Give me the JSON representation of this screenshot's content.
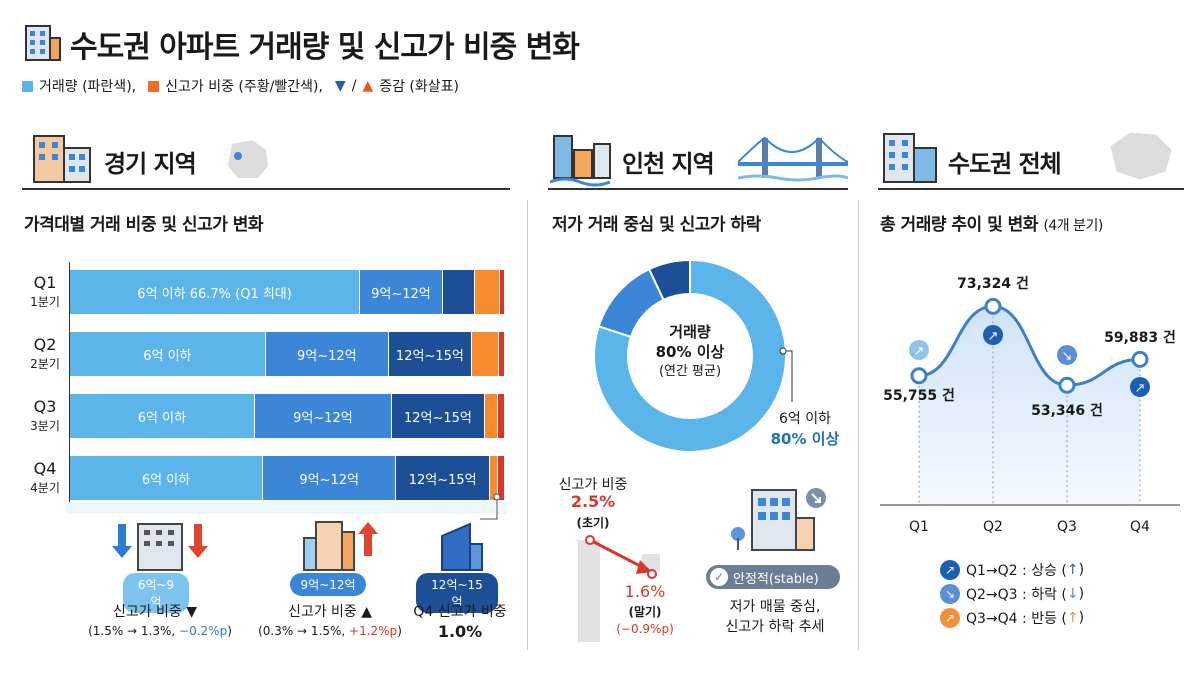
{
  "title": "수도권 아파트 거래량 및 신고가 비중 변화",
  "legend": {
    "volume": "거래량 (파란색),",
    "high_ratio": "신고가 비중 (주황/빨간색),",
    "change_sep": "/",
    "change": "증감 (화살표)"
  },
  "colors": {
    "light": "#5bb4ea",
    "mid": "#3b86d6",
    "dark": "#1d4f96",
    "orange": "#f68a2e",
    "red": "#d9362b",
    "line": "#3d7fc9"
  },
  "gyeonggi": {
    "heading": "경기 지역",
    "subtitle": "가격대별 거래 비중 및 신고가 변화",
    "bottom": [
      {
        "pill": "6억~9억",
        "label": "신고가 비중 ▼",
        "detail": "(1.5% → 1.3%, ",
        "delta": "−0.2%p",
        ")": ")"
      },
      {
        "pill": "9억~12억",
        "label": "신고가 비중 ▲",
        "detail": "(0.3% → 1.5%, ",
        "delta": "+1.2%p",
        ")": ")"
      },
      {
        "pill": "12억~15억",
        "label": "Q4 신고가 비중",
        "value": "1.0%"
      }
    ]
  },
  "incheon": {
    "heading": "인천 지역",
    "subtitle": "저가 거래 중심 및 신고가 하락",
    "donut_center": [
      "거래량",
      "80% 이상",
      "(연간 평균)"
    ],
    "donut_label": "6억 이하",
    "donut_value": "80% 이상",
    "high_title": "신고가 비중",
    "start_value": "2.5%",
    "start_label": "(초기)",
    "end_value": "1.6%",
    "end_label": "(말기)",
    "delta": "(−0.9%p)",
    "badge": "안정적(stable)",
    "note": [
      "저가 매물 중심,",
      "신고가 하락 추세"
    ]
  },
  "capital": {
    "heading": "수도권 전체",
    "subtitle": "총 거래량 추이 및 변화",
    "subtitle_note": "(4개 분기)",
    "legend": [
      {
        "text": "Q1→Q2 : 상승 (",
        "arrow": "↑",
        "color": "#1d5fb0"
      },
      {
        "text": "Q2→Q3 : 하락 (",
        "arrow": "↓",
        "color": "#5a8fd8"
      },
      {
        "text": "Q3→Q4 : 반등 (",
        "arrow": "↑",
        "color": "#f0913a"
      }
    ]
  },
  "chart_data": [
    {
      "type": "bar",
      "stacked": true,
      "orientation": "horizontal",
      "title": "가격대별 거래 비중 및 신고가 변화",
      "categories": [
        "Q1",
        "Q2",
        "Q3",
        "Q4"
      ],
      "category_sublabels": [
        "1분기",
        "2분기",
        "3분기",
        "4분기"
      ],
      "segment_labels": [
        [
          "6억 이하 66.7% (Q1 최대)",
          "9억~12억",
          "",
          "",
          ""
        ],
        [
          "6억 이하",
          "9억~12억",
          "12억~15억",
          "",
          ""
        ],
        [
          "6억 이하",
          "9억~12억",
          "12억~15억",
          "",
          ""
        ],
        [
          "6억 이하",
          "9억~12억",
          "12억~15억",
          "",
          ""
        ]
      ],
      "series": [
        {
          "name": "6억 이하",
          "values": [
            66.7,
            45,
            42.5,
            44.4
          ]
        },
        {
          "name": "9억~12억",
          "values": [
            19,
            28.3,
            31.5,
            30.6
          ]
        },
        {
          "name": "12억~15억",
          "values": [
            7.5,
            19.1,
            21.4,
            21.6
          ]
        },
        {
          "values": [
            5.6,
            6.2,
            3,
            1.8
          ]
        },
        {
          "values": [
            1.2,
            1.4,
            1.6,
            1.6
          ]
        }
      ]
    },
    {
      "type": "pie",
      "donut": true,
      "values": [
        80,
        13,
        7
      ]
    },
    {
      "type": "line",
      "categories": [
        "Q1",
        "Q2",
        "Q3",
        "Q4"
      ],
      "values": [
        55755,
        73324,
        53346,
        59883
      ],
      "data_labels": [
        "55,755 건",
        "73,324 건",
        "53,346 건",
        "59,883 건"
      ],
      "ylim": [
        23000,
        80000
      ],
      "grid": false
    }
  ]
}
